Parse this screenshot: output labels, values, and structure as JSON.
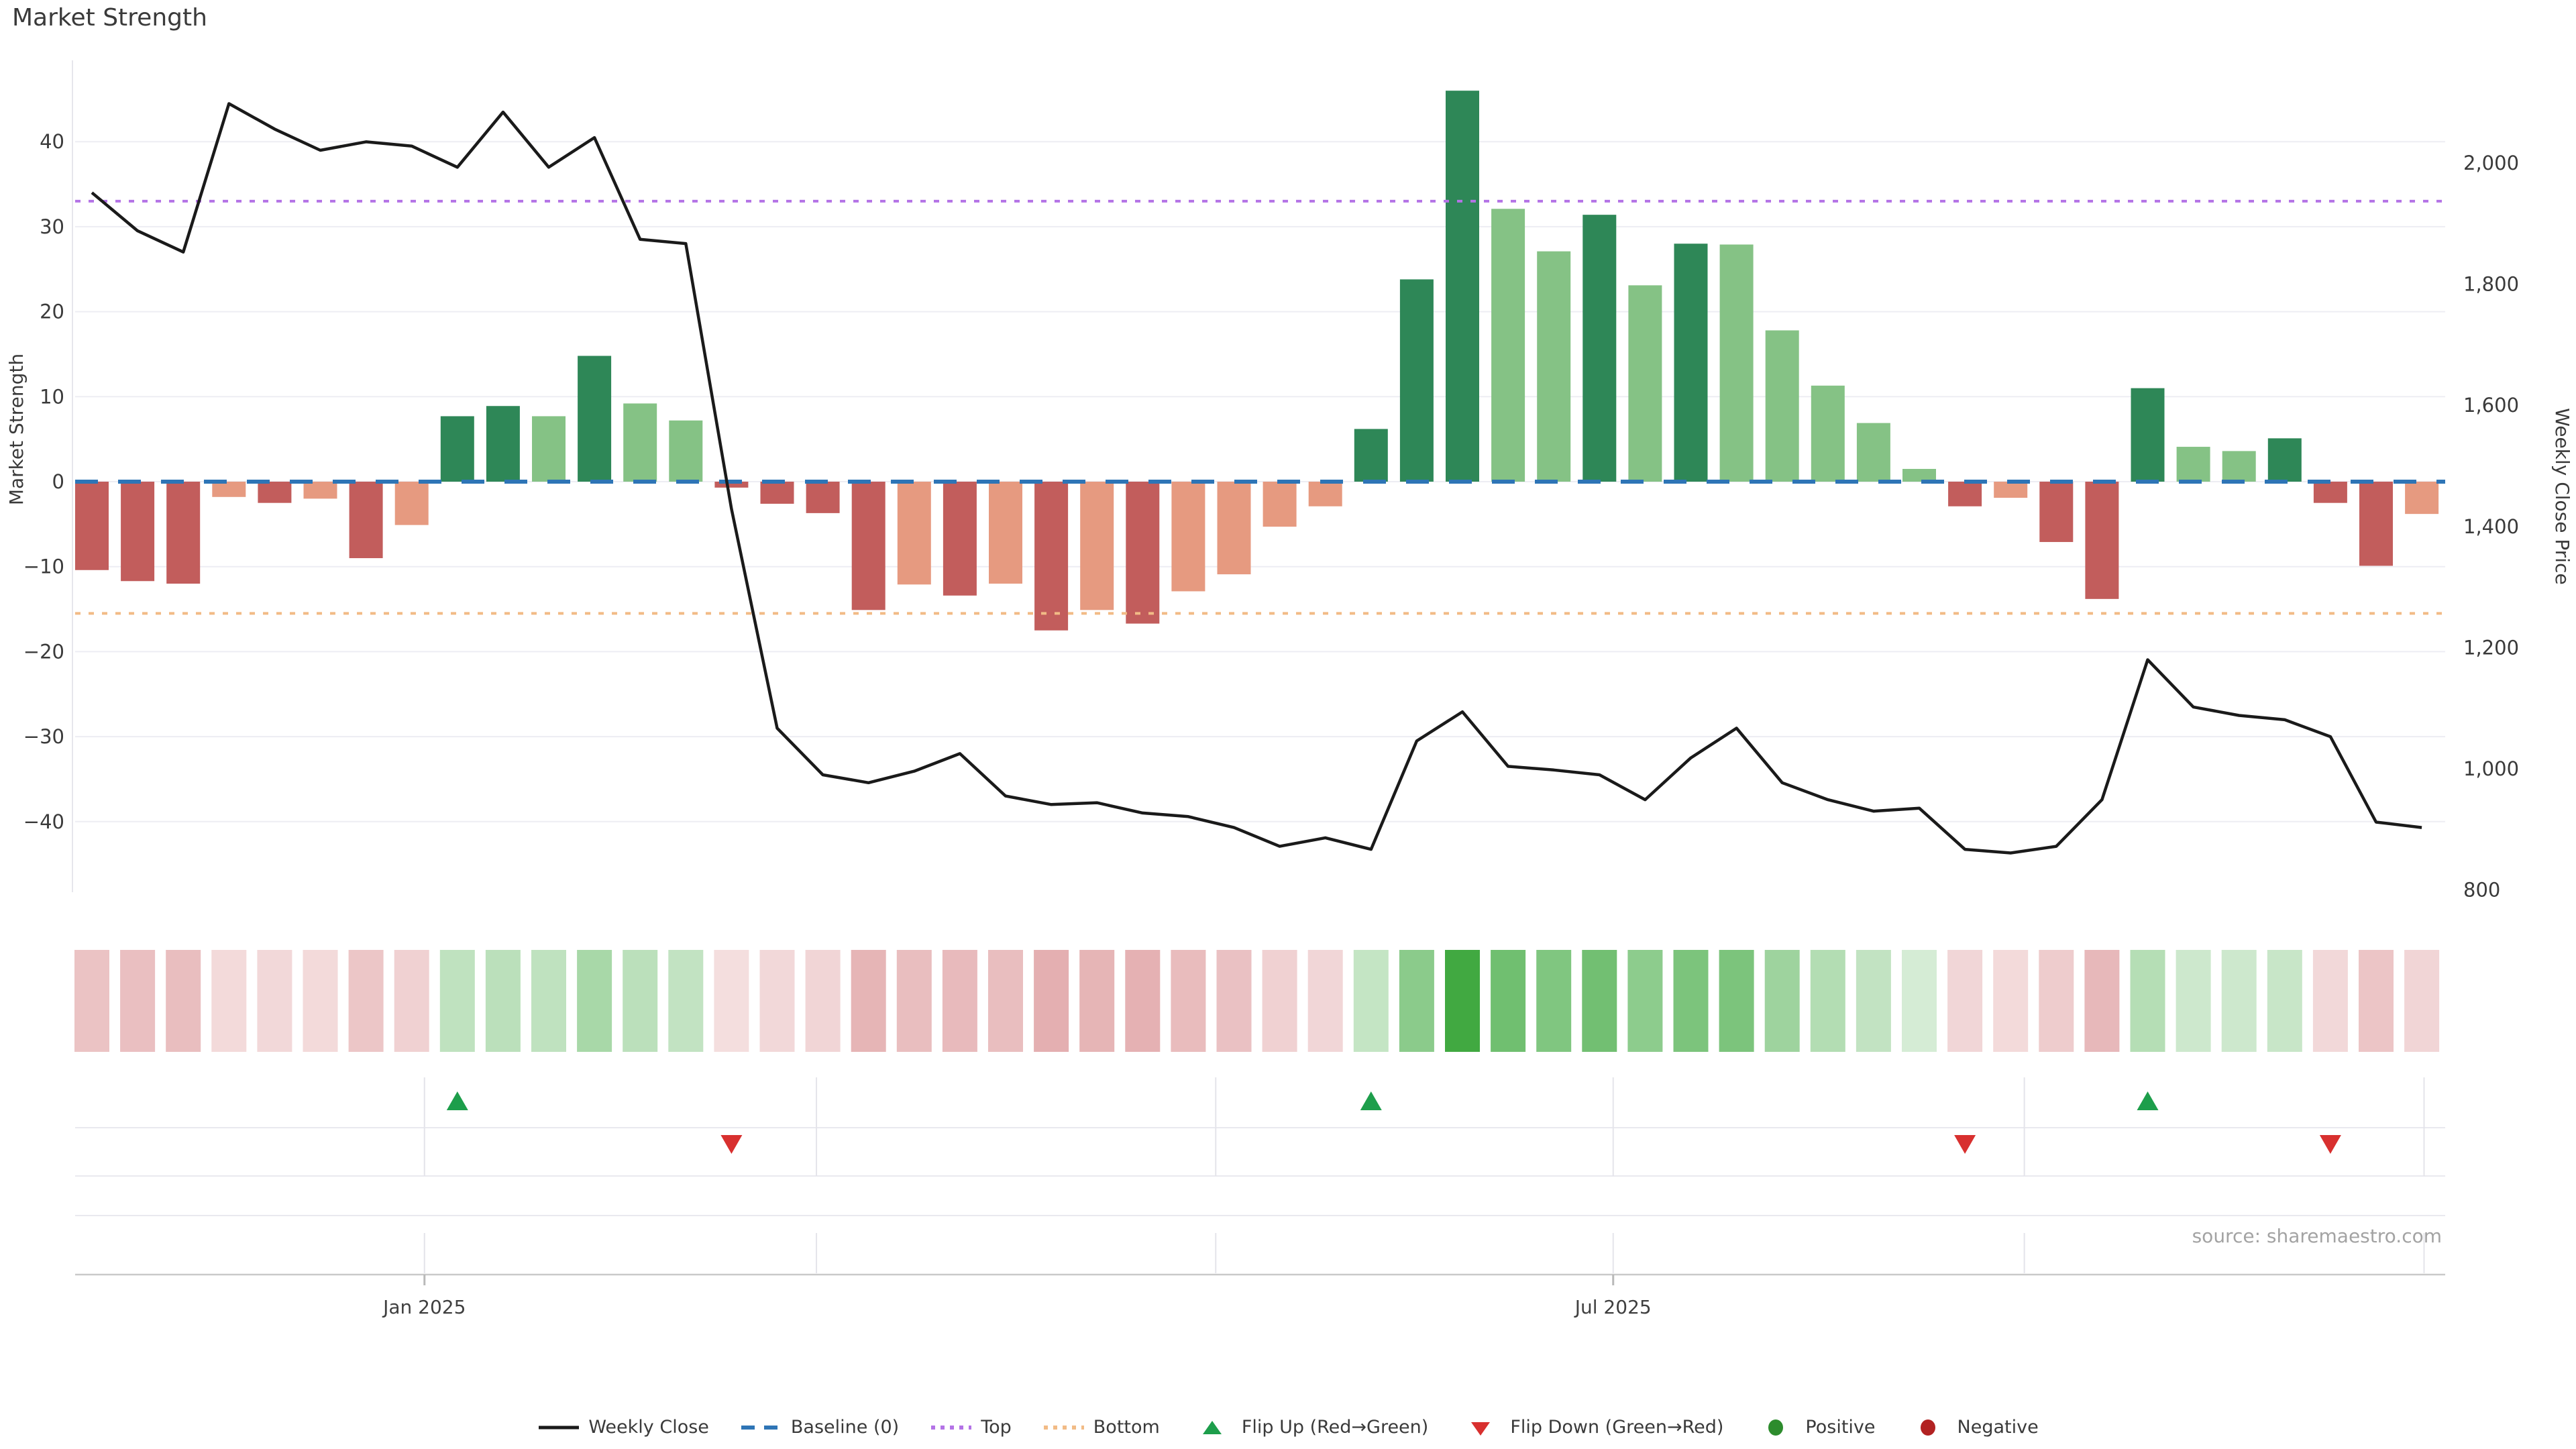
{
  "title": "Market Strength",
  "axes": {
    "left_label": "Market Strength",
    "right_label": "Weekly Close Price",
    "left_ticks": [
      "40",
      "30",
      "20",
      "10",
      "0",
      "−10",
      "−20",
      "−30",
      "−40"
    ],
    "left_tick_values": [
      40,
      30,
      20,
      10,
      0,
      -10,
      -20,
      -30,
      -40
    ],
    "right_ticks": [
      "2,000",
      "1,800",
      "1,600",
      "1,400",
      "1,200",
      "1,000",
      "800"
    ],
    "right_tick_values": [
      2000,
      1800,
      1600,
      1400,
      1200,
      1000,
      800
    ],
    "x_ticks": [
      "Jan 2025",
      "Jul 2025"
    ]
  },
  "source": "source: sharemaestro.com",
  "legend": [
    {
      "label": "Weekly Close",
      "type": "line",
      "color": "#1a1a1a"
    },
    {
      "label": "Baseline (0)",
      "type": "dash",
      "color": "#2e75b6"
    },
    {
      "label": "Top",
      "type": "dots",
      "color": "#b473e6"
    },
    {
      "label": "Bottom",
      "type": "dots",
      "color": "#f2bb86"
    },
    {
      "label": "Flip Up (Red→Green)",
      "type": "tri-up",
      "color": "#1d9e4b"
    },
    {
      "label": "Flip Down (Green→Red)",
      "type": "tri-down",
      "color": "#d8302f"
    },
    {
      "label": "Positive",
      "type": "circle",
      "color": "#2d8c2d"
    },
    {
      "label": "Negative",
      "type": "circle",
      "color": "#b22222"
    }
  ],
  "chart_data": {
    "type": "bar",
    "title": "Market Strength",
    "ylabel_left": "Market Strength",
    "ylabel_right": "Weekly Close Price",
    "ylim_left": [
      -47,
      48
    ],
    "ylim_right": [
      760,
      2160
    ],
    "grid": true,
    "legend_position": "bottom",
    "weeks": 52,
    "x_tick_labels": [
      "Jan 2025",
      "Jul 2025"
    ],
    "baseline": 0,
    "top_threshold": 33,
    "bottom_threshold": -15.5,
    "strength_bars": [
      -10.4,
      -11.7,
      -12.0,
      -1.8,
      -2.5,
      -2.0,
      -9.0,
      -5.1,
      7.7,
      8.9,
      7.7,
      14.8,
      9.2,
      7.2,
      -0.7,
      -2.6,
      -3.7,
      -15.1,
      -12.1,
      -13.4,
      -12.0,
      -17.5,
      -15.1,
      -16.7,
      -12.9,
      -10.9,
      -5.3,
      -2.9,
      6.2,
      23.8,
      46.0,
      32.1,
      27.1,
      31.4,
      23.1,
      28.0,
      27.9,
      17.8,
      11.3,
      6.9,
      1.5,
      -2.9,
      -1.9,
      -7.1,
      -13.8,
      11.0,
      4.1,
      3.6,
      5.1,
      -2.5,
      -9.9,
      -3.8
    ],
    "weekly_close": [
      1951,
      1888,
      1853,
      2098,
      2056,
      2021,
      2035,
      2028,
      1993,
      2084,
      1993,
      2042,
      1874,
      1867,
      1429,
      1067,
      990,
      977,
      996,
      1025,
      955,
      941,
      944,
      927,
      921,
      903,
      872,
      886,
      867,
      1046,
      1094,
      1004,
      998,
      990,
      949,
      1018,
      1067,
      977,
      949,
      930,
      935,
      867,
      861,
      872,
      949,
      1180,
      1102,
      1088,
      1081,
      1053,
      912,
      903
    ],
    "flip_up_weeks": [
      8,
      28,
      45
    ],
    "flip_down_weeks": [
      14,
      41,
      49
    ],
    "colors": {
      "bar_pos_strong": "#2e8757",
      "bar_pos_weak": "#85c285",
      "bar_neg_strong": "#c25d5c",
      "bar_neg_weak": "#e69a80",
      "heat_pos": "44,160,44",
      "heat_neg": "196,78,82",
      "line": "#1a1a1a",
      "baseline": "#2e75b6",
      "top": "#b473e6",
      "bottom": "#f2bb86",
      "flip_up": "#1d9e4b",
      "flip_down": "#d8302f",
      "grid": "#ededf3",
      "tick_text": "#3a3a3a"
    }
  }
}
